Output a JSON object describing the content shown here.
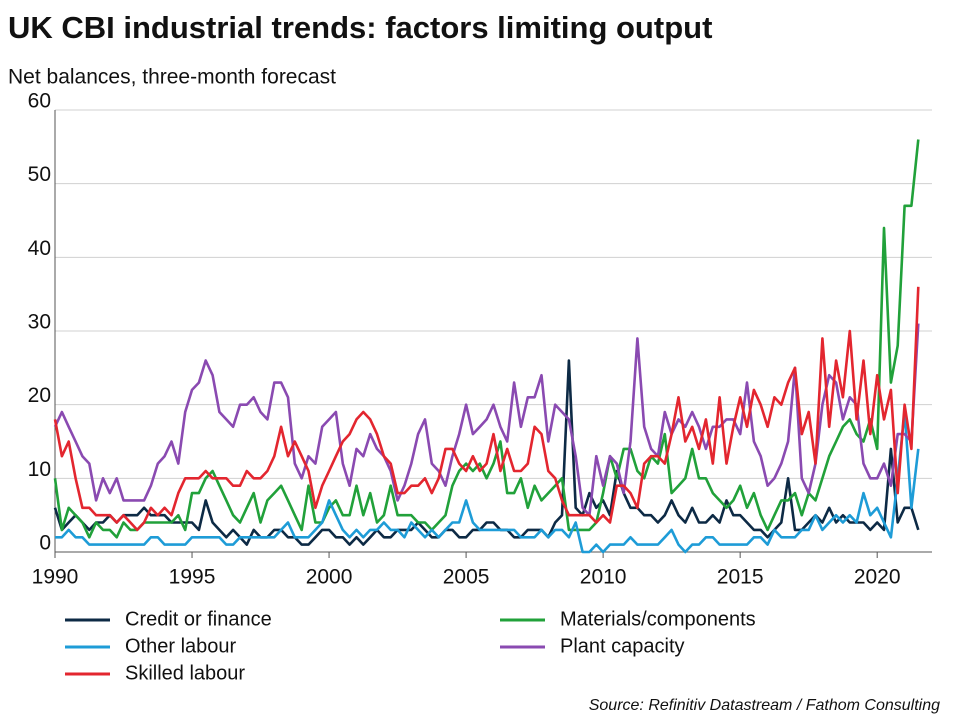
{
  "chart_data": {
    "type": "line",
    "title": "UK CBI industrial trends: factors limiting output",
    "subtitle": "Net balances, three-month forecast",
    "source": "Source: Refinitiv Datastream / Fathom Consulting",
    "xlim": [
      1990,
      2022
    ],
    "xticks": [
      1990,
      1995,
      2000,
      2005,
      2010,
      2015,
      2020
    ],
    "ylim": [
      0,
      60
    ],
    "yticks": [
      0,
      10,
      20,
      30,
      40,
      50,
      60
    ],
    "grid": true,
    "x": [
      1990,
      1990.25,
      1990.5,
      1990.75,
      1991,
      1991.25,
      1991.5,
      1991.75,
      1992,
      1992.25,
      1992.5,
      1992.75,
      1993,
      1993.25,
      1993.5,
      1993.75,
      1994,
      1994.25,
      1994.5,
      1994.75,
      1995,
      1995.25,
      1995.5,
      1995.75,
      1996,
      1996.25,
      1996.5,
      1996.75,
      1997,
      1997.25,
      1997.5,
      1997.75,
      1998,
      1998.25,
      1998.5,
      1998.75,
      1999,
      1999.25,
      1999.5,
      1999.75,
      2000,
      2000.25,
      2000.5,
      2000.75,
      2001,
      2001.25,
      2001.5,
      2001.75,
      2002,
      2002.25,
      2002.5,
      2002.75,
      2003,
      2003.25,
      2003.5,
      2003.75,
      2004,
      2004.25,
      2004.5,
      2004.75,
      2005,
      2005.25,
      2005.5,
      2005.75,
      2006,
      2006.25,
      2006.5,
      2006.75,
      2007,
      2007.25,
      2007.5,
      2007.75,
      2008,
      2008.25,
      2008.5,
      2008.75,
      2009,
      2009.25,
      2009.5,
      2009.75,
      2010,
      2010.25,
      2010.5,
      2010.75,
      2011,
      2011.25,
      2011.5,
      2011.75,
      2012,
      2012.25,
      2012.5,
      2012.75,
      2013,
      2013.25,
      2013.5,
      2013.75,
      2014,
      2014.25,
      2014.5,
      2014.75,
      2015,
      2015.25,
      2015.5,
      2015.75,
      2016,
      2016.25,
      2016.5,
      2016.75,
      2017,
      2017.25,
      2017.5,
      2017.75,
      2018,
      2018.25,
      2018.5,
      2018.75,
      2019,
      2019.25,
      2019.5,
      2019.75,
      2020,
      2020.25,
      2020.5,
      2020.75,
      2021,
      2021.25,
      2021.5
    ],
    "series": [
      {
        "name": "Credit or finance",
        "color": "#0d2a45",
        "values": [
          6,
          3,
          4,
          5,
          4,
          3,
          4,
          4,
          5,
          4,
          5,
          5,
          5,
          6,
          5,
          5,
          5,
          4,
          4,
          4,
          4,
          3,
          7,
          4,
          3,
          2,
          3,
          2,
          1,
          3,
          2,
          2,
          3,
          3,
          2,
          2,
          1,
          1,
          2,
          3,
          3,
          2,
          2,
          1,
          2,
          1,
          2,
          3,
          2,
          2,
          3,
          3,
          3,
          4,
          3,
          2,
          2,
          3,
          3,
          2,
          2,
          3,
          3,
          4,
          4,
          3,
          3,
          2,
          2,
          3,
          3,
          3,
          2,
          4,
          5,
          26,
          6,
          5,
          8,
          6,
          7,
          5,
          11,
          8,
          6,
          6,
          5,
          5,
          4,
          5,
          7,
          5,
          4,
          6,
          4,
          4,
          5,
          4,
          7,
          5,
          5,
          4,
          3,
          3,
          2,
          3,
          4,
          10,
          3,
          3,
          4,
          5,
          4,
          6,
          4,
          5,
          4,
          4,
          4,
          3,
          4,
          3,
          14,
          4,
          6,
          6,
          3
        ]
      },
      {
        "name": "Materials/components",
        "color": "#21a13a",
        "values": [
          10,
          3,
          6,
          5,
          4,
          2,
          4,
          3,
          3,
          2,
          4,
          3,
          3,
          4,
          4,
          4,
          4,
          4,
          5,
          3,
          8,
          8,
          10,
          11,
          9,
          7,
          5,
          4,
          6,
          8,
          4,
          7,
          8,
          9,
          7,
          5,
          3,
          9,
          4,
          4,
          6,
          7,
          5,
          5,
          9,
          5,
          8,
          4,
          5,
          9,
          5,
          5,
          5,
          4,
          4,
          3,
          4,
          5,
          9,
          11,
          12,
          11,
          12,
          10,
          12,
          15,
          8,
          8,
          10,
          6,
          9,
          7,
          8,
          9,
          10,
          3,
          3,
          3,
          3,
          4,
          8,
          13,
          10,
          14,
          14,
          11,
          10,
          13,
          12,
          16,
          8,
          9,
          10,
          14,
          10,
          10,
          8,
          7,
          6,
          7,
          9,
          6,
          8,
          5,
          3,
          5,
          7,
          7,
          8,
          5,
          8,
          7,
          10,
          13,
          15,
          17,
          18,
          16,
          15,
          18,
          14,
          44,
          23,
          28,
          47,
          47,
          56
        ]
      },
      {
        "name": "Other labour",
        "color": "#1e9cd7",
        "values": [
          2,
          2,
          3,
          2,
          2,
          1,
          1,
          1,
          1,
          1,
          1,
          1,
          1,
          1,
          2,
          2,
          1,
          1,
          1,
          1,
          2,
          2,
          2,
          2,
          2,
          1,
          1,
          2,
          2,
          2,
          2,
          2,
          2,
          3,
          4,
          2,
          2,
          2,
          3,
          4,
          7,
          5,
          3,
          2,
          3,
          2,
          3,
          3,
          4,
          3,
          3,
          2,
          4,
          3,
          2,
          3,
          2,
          3,
          4,
          4,
          7,
          4,
          3,
          3,
          3,
          3,
          3,
          3,
          2,
          2,
          2,
          3,
          2,
          3,
          3,
          2,
          4,
          0,
          0,
          1,
          0,
          1,
          1,
          1,
          2,
          1,
          1,
          1,
          1,
          2,
          3,
          1,
          0,
          1,
          1,
          2,
          2,
          1,
          1,
          1,
          1,
          1,
          2,
          2,
          1,
          3,
          2,
          2,
          2,
          3,
          3,
          5,
          3,
          4,
          5,
          4,
          5,
          4,
          8,
          5,
          6,
          4,
          2,
          10,
          19,
          6,
          14
        ]
      },
      {
        "name": "Plant capacity",
        "color": "#8a4ab1",
        "values": [
          17,
          19,
          17,
          15,
          13,
          12,
          7,
          10,
          8,
          10,
          7,
          7,
          7,
          7,
          9,
          12,
          13,
          15,
          12,
          19,
          22,
          23,
          26,
          24,
          19,
          18,
          17,
          20,
          20,
          21,
          19,
          18,
          23,
          23,
          21,
          12,
          10,
          13,
          12,
          17,
          18,
          19,
          12,
          9,
          14,
          13,
          16,
          14,
          13,
          11,
          7,
          9,
          12,
          16,
          18,
          12,
          11,
          9,
          13,
          16,
          20,
          16,
          17,
          18,
          20,
          17,
          15,
          23,
          17,
          21,
          21,
          24,
          15,
          20,
          19,
          18,
          13,
          6,
          5,
          13,
          9,
          13,
          12,
          8,
          15,
          29,
          17,
          14,
          13,
          19,
          16,
          18,
          17,
          19,
          17,
          14,
          17,
          17,
          18,
          18,
          16,
          23,
          15,
          13,
          9,
          10,
          12,
          15,
          25,
          10,
          8,
          12,
          20,
          24,
          23,
          18,
          21,
          20,
          12,
          10,
          10,
          12,
          9,
          16,
          16,
          15,
          31
        ]
      },
      {
        "name": "Skilled labour",
        "color": "#e3262f",
        "values": [
          18,
          13,
          15,
          10,
          6,
          6,
          5,
          5,
          5,
          4,
          5,
          4,
          3,
          4,
          6,
          5,
          6,
          5,
          8,
          10,
          10,
          10,
          11,
          10,
          10,
          10,
          9,
          9,
          11,
          10,
          10,
          11,
          13,
          17,
          13,
          15,
          13,
          11,
          6,
          9,
          11,
          13,
          15,
          16,
          18,
          19,
          18,
          16,
          13,
          12,
          8,
          8,
          9,
          9,
          10,
          8,
          10,
          14,
          14,
          12,
          11,
          13,
          11,
          12,
          16,
          11,
          14,
          11,
          11,
          12,
          17,
          16,
          11,
          10,
          7,
          5,
          5,
          5,
          5,
          4,
          5,
          4,
          9,
          9,
          8,
          6,
          12,
          13,
          13,
          12,
          16,
          21,
          15,
          17,
          14,
          18,
          12,
          21,
          12,
          17,
          21,
          17,
          22,
          20,
          17,
          21,
          20,
          23,
          25,
          16,
          19,
          12,
          29,
          17,
          26,
          21,
          30,
          18,
          26,
          16,
          24,
          18,
          22,
          8,
          20,
          14,
          36
        ]
      }
    ]
  }
}
